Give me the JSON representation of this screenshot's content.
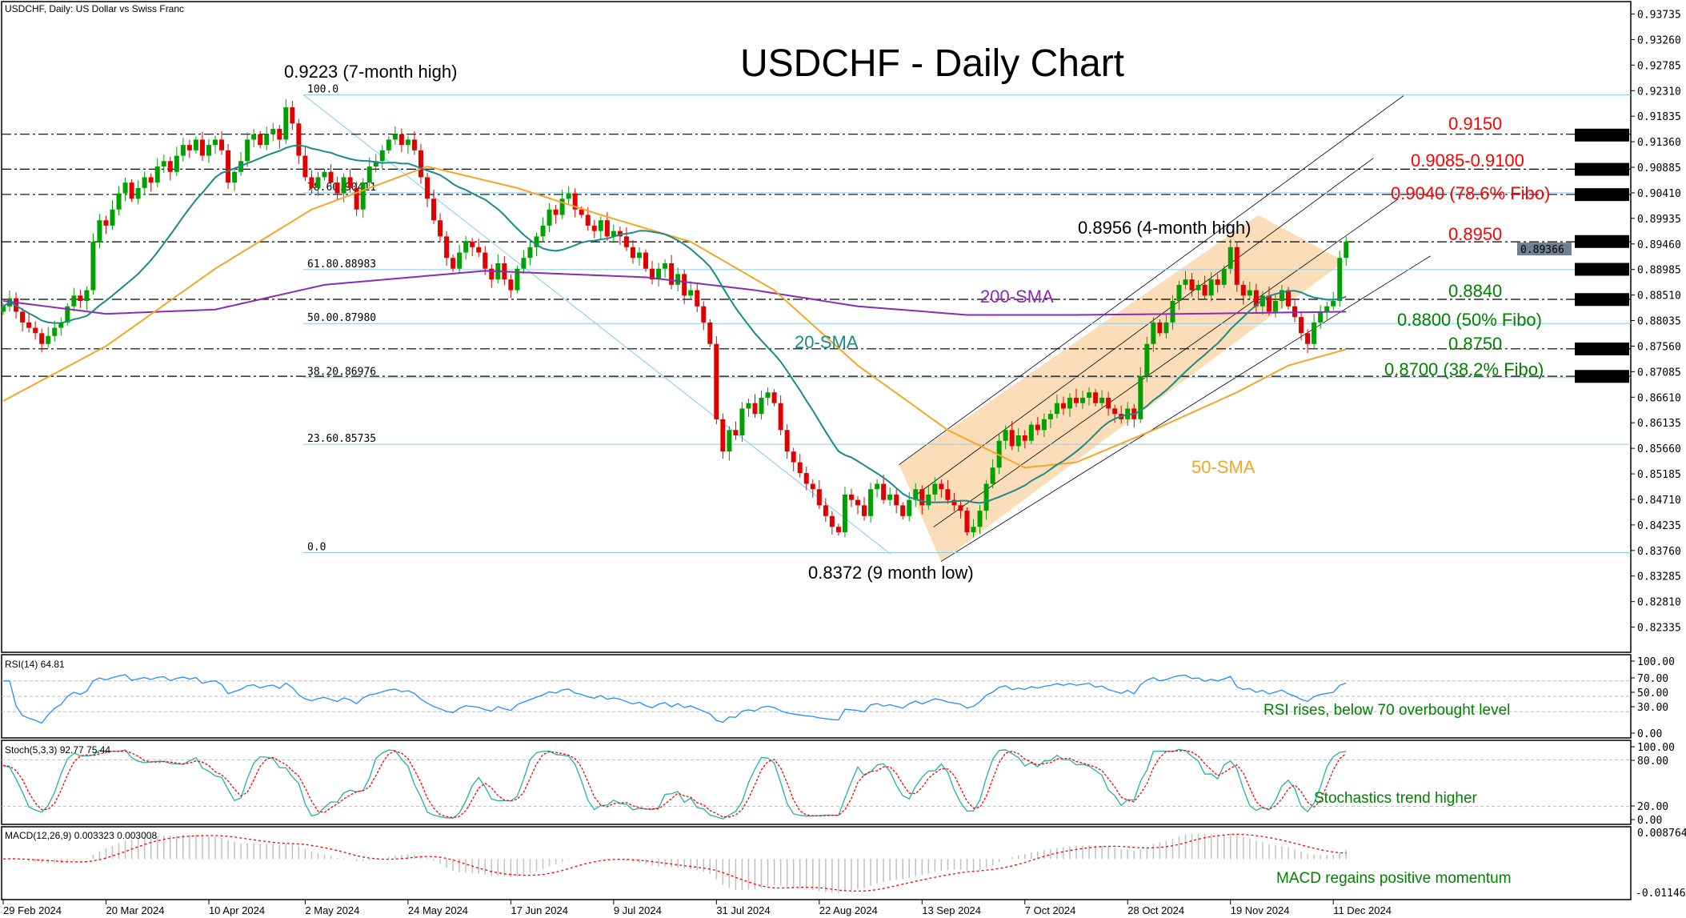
{
  "header": {
    "symbol_info": "USDCHF, Daily:  US Dollar vs Swiss Franc"
  },
  "chart_data": {
    "type": "candlestick",
    "title": "USDCHF - Daily Chart",
    "colors": {
      "bull": "#00a000",
      "bear": "#e00000",
      "sma20": "#1a8a8a",
      "sma50": "#f5a623",
      "sma200": "#8a2bb8",
      "fibo": "#87ceeb",
      "channel_fill": "#fbd5a8",
      "resistance": "#ff0000",
      "support": "#008000"
    },
    "x_ticks": [
      {
        "index": 0,
        "label": "29 Feb 2024"
      },
      {
        "index": 16,
        "label": "20 Mar 2024"
      },
      {
        "index": 32,
        "label": "10 Apr 2024"
      },
      {
        "index": 47,
        "label": "2 May 2024"
      },
      {
        "index": 63,
        "label": "24 May 2024"
      },
      {
        "index": 79,
        "label": "17 Jun 2024"
      },
      {
        "index": 95,
        "label": "9 Jul 2024"
      },
      {
        "index": 111,
        "label": "31 Jul 2024"
      },
      {
        "index": 127,
        "label": "22 Aug 2024"
      },
      {
        "index": 143,
        "label": "13 Sep 2024"
      },
      {
        "index": 159,
        "label": "7 Oct 2024"
      },
      {
        "index": 175,
        "label": "28 Oct 2024"
      },
      {
        "index": 191,
        "label": "19 Nov 2024"
      },
      {
        "index": 207,
        "label": "11 Dec 2024"
      }
    ],
    "price_ticks": [
      "0.93735",
      "0.93260",
      "0.92785",
      "0.92310",
      "0.91835",
      "0.91360",
      "0.90885",
      "0.90410",
      "0.89935",
      "0.89460",
      "0.88985",
      "0.88510",
      "0.88035",
      "0.87560",
      "0.87085",
      "0.86610",
      "0.86135",
      "0.85660",
      "0.85185",
      "0.84710",
      "0.84235",
      "0.83760",
      "0.83285",
      "0.82810",
      "0.82335"
    ],
    "highlighted_levels": [
      "0.91484",
      "0.90847",
      "0.90377",
      "0.89505",
      "0.88988",
      "0.88426",
      "0.87508",
      "0.86997"
    ],
    "current_price": "0.89366",
    "closes": [
      0.883,
      0.8845,
      0.882,
      0.88,
      0.879,
      0.878,
      0.876,
      0.8775,
      0.879,
      0.88,
      0.883,
      0.885,
      0.884,
      0.886,
      0.895,
      0.899,
      0.898,
      0.901,
      0.904,
      0.906,
      0.903,
      0.905,
      0.907,
      0.906,
      0.909,
      0.91,
      0.908,
      0.911,
      0.913,
      0.912,
      0.914,
      0.911,
      0.913,
      0.914,
      0.912,
      0.906,
      0.908,
      0.91,
      0.914,
      0.915,
      0.913,
      0.915,
      0.916,
      0.914,
      0.92,
      0.917,
      0.911,
      0.907,
      0.905,
      0.907,
      0.908,
      0.906,
      0.904,
      0.907,
      0.905,
      0.901,
      0.906,
      0.909,
      0.91,
      0.912,
      0.914,
      0.915,
      0.913,
      0.914,
      0.912,
      0.907,
      0.903,
      0.899,
      0.896,
      0.892,
      0.89,
      0.893,
      0.895,
      0.894,
      0.893,
      0.89,
      0.888,
      0.891,
      0.888,
      0.886,
      0.89,
      0.892,
      0.894,
      0.896,
      0.898,
      0.901,
      0.9,
      0.903,
      0.904,
      0.901,
      0.9,
      0.898,
      0.897,
      0.899,
      0.896,
      0.897,
      0.896,
      0.894,
      0.892,
      0.893,
      0.89,
      0.888,
      0.89,
      0.891,
      0.887,
      0.889,
      0.885,
      0.886,
      0.883,
      0.88,
      0.876,
      0.862,
      0.856,
      0.86,
      0.859,
      0.864,
      0.865,
      0.863,
      0.866,
      0.867,
      0.865,
      0.86,
      0.856,
      0.854,
      0.852,
      0.85,
      0.849,
      0.846,
      0.844,
      0.842,
      0.841,
      0.848,
      0.847,
      0.846,
      0.844,
      0.849,
      0.85,
      0.847,
      0.848,
      0.846,
      0.844,
      0.847,
      0.849,
      0.846,
      0.848,
      0.85,
      0.849,
      0.847,
      0.846,
      0.845,
      0.841,
      0.842,
      0.845,
      0.85,
      0.853,
      0.858,
      0.86,
      0.857,
      0.859,
      0.858,
      0.861,
      0.86,
      0.862,
      0.863,
      0.865,
      0.864,
      0.866,
      0.865,
      0.866,
      0.867,
      0.865,
      0.866,
      0.864,
      0.863,
      0.862,
      0.864,
      0.862,
      0.87,
      0.876,
      0.88,
      0.878,
      0.88,
      0.884,
      0.887,
      0.888,
      0.886,
      0.887,
      0.885,
      0.888,
      0.887,
      0.89,
      0.894,
      0.887,
      0.885,
      0.886,
      0.883,
      0.885,
      0.882,
      0.884,
      0.886,
      0.883,
      0.881,
      0.878,
      0.876,
      0.88,
      0.882,
      0.883,
      0.884,
      0.892,
      0.895
    ],
    "sma50": [
      [
        0,
        0.8654
      ],
      [
        16,
        0.8756
      ],
      [
        33,
        0.89
      ],
      [
        48,
        0.901
      ],
      [
        66,
        0.909
      ],
      [
        80,
        0.905
      ],
      [
        93,
        0.9
      ],
      [
        107,
        0.895
      ],
      [
        120,
        0.886
      ],
      [
        133,
        0.872
      ],
      [
        147,
        0.86
      ],
      [
        159,
        0.853
      ],
      [
        167,
        0.854
      ],
      [
        179,
        0.86
      ],
      [
        192,
        0.867
      ],
      [
        200,
        0.872
      ],
      [
        209,
        0.875
      ]
    ],
    "sma200": [
      [
        0,
        0.884
      ],
      [
        16,
        0.8816
      ],
      [
        33,
        0.8824
      ],
      [
        50,
        0.887
      ],
      [
        75,
        0.8896
      ],
      [
        100,
        0.8884
      ],
      [
        117,
        0.886
      ],
      [
        133,
        0.883
      ],
      [
        150,
        0.8814
      ],
      [
        167,
        0.8814
      ],
      [
        184,
        0.8816
      ],
      [
        209,
        0.882
      ]
    ],
    "horizontal_levels": [
      0.915,
      0.9085,
      0.9038,
      0.895,
      0.8843,
      0.8751,
      0.87
    ],
    "fibo": [
      {
        "label": "100.0",
        "price": 0.9223
      },
      {
        "label": "78.60.90411",
        "price": 0.90411
      },
      {
        "label": "61.80.88983",
        "price": 0.88983
      },
      {
        "label": "50.00.87980",
        "price": 0.8798
      },
      {
        "label": "38.20.86976",
        "price": 0.86976
      },
      {
        "label": "23.60.85735",
        "price": 0.85735
      },
      {
        "label": "0.0",
        "price": 0.8372
      }
    ],
    "annotations": {
      "high": "0.9223 (7-month high)",
      "low": "0.8372 (9 month low)",
      "recent_high": "0.8956 (4-month high)",
      "r1": "0.9150",
      "r2": "0.9085-0.9100",
      "r3": "0.9040 (78.6% Fibo)",
      "r4": "0.8950",
      "s1": "0.8840",
      "s2": "0.8800 (50% Fibo)",
      "s3": "0.8750",
      "s4": "0.8700 (38.2% Fibo)",
      "sma20": "20-SMA",
      "sma50": "50-SMA",
      "sma200": "200-SMA"
    },
    "rsi": {
      "label": "RSI(14) 64.81",
      "ticks": [
        "100.00",
        "70.00",
        "50.00",
        "30.00",
        "0.00"
      ],
      "note": "RSI rises, below 70 overbought level"
    },
    "stoch": {
      "label": "Stoch(5,3,3) 92.77 75.44",
      "ticks": [
        "100.00",
        "80.00",
        "20.00",
        "0.00"
      ],
      "note": "Stochastics trend higher"
    },
    "macd": {
      "label": "MACD(12,26,9) 0.003323 0.003008",
      "max": "0.008764",
      "min": "-0.011466",
      "note": "MACD regains positive momentum"
    }
  }
}
